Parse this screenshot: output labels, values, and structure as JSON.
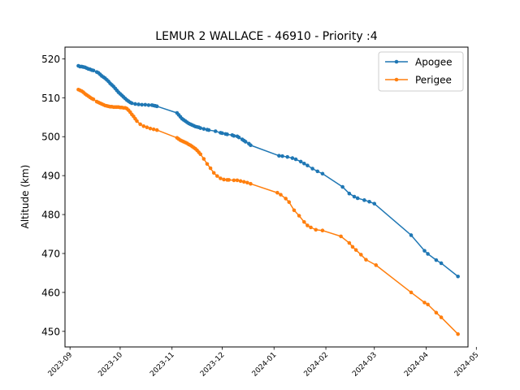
{
  "chart_data": {
    "type": "line",
    "title": "LEMUR 2 WALLACE - 46910 - Priority :4",
    "xlabel": "",
    "ylabel": "Altitude (km)",
    "ylim": [
      446,
      523
    ],
    "xlim": [
      "2023-08-29",
      "2024-04-26"
    ],
    "yticks": [
      450,
      460,
      470,
      480,
      490,
      500,
      510,
      520
    ],
    "xticks": [
      "2023-09-01",
      "2023-10-01",
      "2023-11-01",
      "2023-12-01",
      "2024-01-01",
      "2024-02-01",
      "2024-03-01",
      "2024-04-01",
      "2024-05-01"
    ],
    "xtick_labels": [
      "2023-09",
      "2023-10",
      "2023-11",
      "2023-12",
      "2024-01",
      "2024-02",
      "2024-03",
      "2024-04",
      "2024-05"
    ],
    "legend": "top-right",
    "grid": false,
    "series": [
      {
        "name": "Apogee",
        "color": "#1f77b4",
        "points": [
          [
            "2023-09-06",
            518.2
          ],
          [
            "2023-09-07",
            518.0
          ],
          [
            "2023-09-08",
            518.0
          ],
          [
            "2023-09-09",
            517.9
          ],
          [
            "2023-09-10",
            517.8
          ],
          [
            "2023-09-11",
            517.6
          ],
          [
            "2023-09-12",
            517.4
          ],
          [
            "2023-09-13",
            517.3
          ],
          [
            "2023-09-14",
            517.1
          ],
          [
            "2023-09-15",
            517.0
          ],
          [
            "2023-09-17",
            516.6
          ],
          [
            "2023-09-18",
            516.4
          ],
          [
            "2023-09-19",
            516.0
          ],
          [
            "2023-09-20",
            515.6
          ],
          [
            "2023-09-21",
            515.3
          ],
          [
            "2023-09-22",
            515.0
          ],
          [
            "2023-09-23",
            514.6
          ],
          [
            "2023-09-24",
            514.2
          ],
          [
            "2023-09-25",
            513.7
          ],
          [
            "2023-09-26",
            513.3
          ],
          [
            "2023-09-27",
            512.9
          ],
          [
            "2023-09-28",
            512.4
          ],
          [
            "2023-09-29",
            511.9
          ],
          [
            "2023-09-30",
            511.4
          ],
          [
            "2023-10-01",
            511.0
          ],
          [
            "2023-10-02",
            510.6
          ],
          [
            "2023-10-03",
            510.2
          ],
          [
            "2023-10-04",
            509.8
          ],
          [
            "2023-10-05",
            509.4
          ],
          [
            "2023-10-06",
            509.1
          ],
          [
            "2023-10-07",
            508.8
          ],
          [
            "2023-10-08",
            508.6
          ],
          [
            "2023-10-10",
            508.4
          ],
          [
            "2023-10-12",
            508.3
          ],
          [
            "2023-10-14",
            508.2
          ],
          [
            "2023-10-16",
            508.2
          ],
          [
            "2023-10-18",
            508.1
          ],
          [
            "2023-10-20",
            508.1
          ],
          [
            "2023-10-21",
            508.0
          ],
          [
            "2023-10-22",
            507.9
          ],
          [
            "2023-10-23",
            507.8
          ],
          [
            "2023-11-04",
            506.1
          ],
          [
            "2023-11-05",
            505.6
          ],
          [
            "2023-11-06",
            505.1
          ],
          [
            "2023-11-07",
            504.6
          ],
          [
            "2023-11-08",
            504.3
          ],
          [
            "2023-11-09",
            504.0
          ],
          [
            "2023-11-10",
            503.7
          ],
          [
            "2023-11-11",
            503.4
          ],
          [
            "2023-11-12",
            503.2
          ],
          [
            "2023-11-13",
            503.0
          ],
          [
            "2023-11-14",
            502.8
          ],
          [
            "2023-11-15",
            502.6
          ],
          [
            "2023-11-16",
            502.5
          ],
          [
            "2023-11-17",
            502.4
          ],
          [
            "2023-11-18",
            502.2
          ],
          [
            "2023-11-20",
            502.0
          ],
          [
            "2023-11-22",
            501.8
          ],
          [
            "2023-11-23",
            501.7
          ],
          [
            "2023-11-27",
            501.4
          ],
          [
            "2023-11-30",
            501.0
          ],
          [
            "2023-12-01",
            500.9
          ],
          [
            "2023-12-03",
            500.7
          ],
          [
            "2023-12-04",
            500.6
          ],
          [
            "2023-12-07",
            500.4
          ],
          [
            "2023-12-08",
            500.2
          ],
          [
            "2023-12-10",
            500.1
          ],
          [
            "2023-12-11",
            499.8
          ],
          [
            "2023-12-13",
            499.3
          ],
          [
            "2023-12-14",
            499.0
          ],
          [
            "2023-12-15",
            498.7
          ],
          [
            "2023-12-17",
            498.2
          ],
          [
            "2023-12-18",
            497.8
          ],
          [
            "2024-01-04",
            495.1
          ],
          [
            "2024-01-06",
            495.0
          ],
          [
            "2024-01-09",
            494.8
          ],
          [
            "2024-01-12",
            494.5
          ],
          [
            "2024-01-14",
            494.2
          ],
          [
            "2024-01-17",
            493.6
          ],
          [
            "2024-01-19",
            493.1
          ],
          [
            "2024-01-21",
            492.6
          ],
          [
            "2024-01-24",
            491.8
          ],
          [
            "2024-01-27",
            491.1
          ],
          [
            "2024-01-30",
            490.5
          ],
          [
            "2024-02-11",
            487.1
          ],
          [
            "2024-02-15",
            485.4
          ],
          [
            "2024-02-18",
            484.6
          ],
          [
            "2024-02-20",
            484.2
          ],
          [
            "2024-02-24",
            483.7
          ],
          [
            "2024-02-27",
            483.3
          ],
          [
            "2024-03-01",
            482.8
          ],
          [
            "2024-03-23",
            474.7
          ],
          [
            "2024-03-31",
            470.7
          ],
          [
            "2024-04-02",
            469.9
          ],
          [
            "2024-04-07",
            468.3
          ],
          [
            "2024-04-10",
            467.5
          ],
          [
            "2024-04-20",
            464.1
          ]
        ]
      },
      {
        "name": "Perigee",
        "color": "#ff7f0e",
        "points": [
          [
            "2023-09-06",
            512.1
          ],
          [
            "2023-09-07",
            511.9
          ],
          [
            "2023-09-08",
            511.7
          ],
          [
            "2023-09-09",
            511.4
          ],
          [
            "2023-09-10",
            511.0
          ],
          [
            "2023-09-11",
            510.7
          ],
          [
            "2023-09-12",
            510.4
          ],
          [
            "2023-09-13",
            510.1
          ],
          [
            "2023-09-14",
            509.8
          ],
          [
            "2023-09-15",
            509.6
          ],
          [
            "2023-09-17",
            509.0
          ],
          [
            "2023-09-18",
            508.8
          ],
          [
            "2023-09-19",
            508.6
          ],
          [
            "2023-09-20",
            508.4
          ],
          [
            "2023-09-21",
            508.2
          ],
          [
            "2023-09-22",
            508.0
          ],
          [
            "2023-09-23",
            507.9
          ],
          [
            "2023-09-24",
            507.8
          ],
          [
            "2023-09-25",
            507.7
          ],
          [
            "2023-09-26",
            507.7
          ],
          [
            "2023-09-27",
            507.6
          ],
          [
            "2023-09-28",
            507.6
          ],
          [
            "2023-09-29",
            507.6
          ],
          [
            "2023-09-30",
            507.6
          ],
          [
            "2023-10-01",
            507.5
          ],
          [
            "2023-10-02",
            507.5
          ],
          [
            "2023-10-03",
            507.4
          ],
          [
            "2023-10-04",
            507.4
          ],
          [
            "2023-10-05",
            507.2
          ],
          [
            "2023-10-06",
            506.8
          ],
          [
            "2023-10-07",
            506.3
          ],
          [
            "2023-10-08",
            505.7
          ],
          [
            "2023-10-09",
            505.2
          ],
          [
            "2023-10-10",
            504.6
          ],
          [
            "2023-10-11",
            504.0
          ],
          [
            "2023-10-13",
            503.2
          ],
          [
            "2023-10-15",
            502.7
          ],
          [
            "2023-10-17",
            502.4
          ],
          [
            "2023-10-19",
            502.1
          ],
          [
            "2023-10-21",
            501.9
          ],
          [
            "2023-10-23",
            501.7
          ],
          [
            "2023-11-04",
            499.7
          ],
          [
            "2023-11-05",
            499.4
          ],
          [
            "2023-11-06",
            499.1
          ],
          [
            "2023-11-07",
            498.9
          ],
          [
            "2023-11-08",
            498.7
          ],
          [
            "2023-11-09",
            498.5
          ],
          [
            "2023-11-10",
            498.3
          ],
          [
            "2023-11-11",
            498.0
          ],
          [
            "2023-11-12",
            497.8
          ],
          [
            "2023-11-13",
            497.5
          ],
          [
            "2023-11-14",
            497.2
          ],
          [
            "2023-11-15",
            496.9
          ],
          [
            "2023-11-16",
            496.5
          ],
          [
            "2023-11-17",
            496.0
          ],
          [
            "2023-11-18",
            495.5
          ],
          [
            "2023-11-20",
            494.3
          ],
          [
            "2023-11-22",
            493.0
          ],
          [
            "2023-11-24",
            491.9
          ],
          [
            "2023-11-26",
            490.7
          ],
          [
            "2023-11-28",
            489.9
          ],
          [
            "2023-11-30",
            489.3
          ],
          [
            "2023-12-02",
            489.0
          ],
          [
            "2023-12-04",
            488.9
          ],
          [
            "2023-12-05",
            488.9
          ],
          [
            "2023-12-08",
            488.8
          ],
          [
            "2023-12-10",
            488.8
          ],
          [
            "2023-12-12",
            488.6
          ],
          [
            "2023-12-14",
            488.4
          ],
          [
            "2023-12-16",
            488.2
          ],
          [
            "2023-12-18",
            487.9
          ],
          [
            "2024-01-03",
            485.6
          ],
          [
            "2024-01-05",
            485.1
          ],
          [
            "2024-01-08",
            484.1
          ],
          [
            "2024-01-10",
            483.2
          ],
          [
            "2024-01-13",
            481.1
          ],
          [
            "2024-01-16",
            479.7
          ],
          [
            "2024-01-19",
            478.1
          ],
          [
            "2024-01-21",
            477.2
          ],
          [
            "2024-01-23",
            476.7
          ],
          [
            "2024-01-26",
            476.1
          ],
          [
            "2024-01-30",
            475.9
          ],
          [
            "2024-02-10",
            474.4
          ],
          [
            "2024-02-15",
            472.7
          ],
          [
            "2024-02-17",
            471.7
          ],
          [
            "2024-02-19",
            470.9
          ],
          [
            "2024-02-22",
            469.7
          ],
          [
            "2024-02-25",
            468.4
          ],
          [
            "2024-03-02",
            467.0
          ],
          [
            "2024-03-23",
            460.0
          ],
          [
            "2024-03-31",
            457.4
          ],
          [
            "2024-04-02",
            456.9
          ],
          [
            "2024-04-07",
            454.8
          ],
          [
            "2024-04-10",
            453.6
          ],
          [
            "2024-04-20",
            449.3
          ]
        ]
      }
    ]
  }
}
